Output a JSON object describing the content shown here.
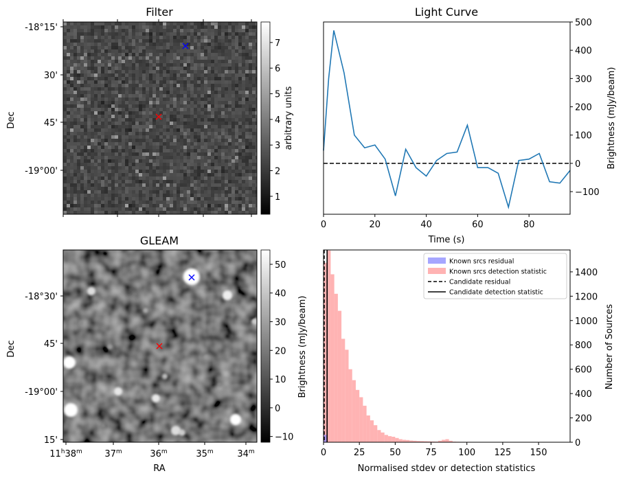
{
  "panels": {
    "filter": {
      "title": "Filter",
      "ylabel": "Dec",
      "yticks": [
        "-18°15'",
        "30'",
        "45'",
        "-19°00'"
      ],
      "colorbar": {
        "label": "arbitrary units",
        "ticks": [
          "1",
          "2",
          "3",
          "4",
          "5",
          "6",
          "7"
        ],
        "range": [
          0.3,
          7.8
        ]
      },
      "markers": [
        {
          "color": "#0000ff",
          "symbol": "x"
        },
        {
          "color": "#ff0000",
          "symbol": "x"
        }
      ]
    },
    "gleam": {
      "title": "GLEAM",
      "ylabel": "Dec",
      "xlabel": "RA",
      "yticks": [
        "-18°30'",
        "45'",
        "-19°00'",
        "15'"
      ],
      "xticks": [
        {
          "main": "11",
          "sup1": "h",
          "mid": "38",
          "sup2": "m"
        },
        {
          "main": "",
          "sup1": "",
          "mid": "37",
          "sup2": "m"
        },
        {
          "main": "",
          "sup1": "",
          "mid": "36",
          "sup2": "m"
        },
        {
          "main": "",
          "sup1": "",
          "mid": "35",
          "sup2": "m"
        },
        {
          "main": "",
          "sup1": "",
          "mid": "34",
          "sup2": "m"
        }
      ],
      "colorbar": {
        "label": "Brightness (mJy/beam)",
        "ticks": [
          "−10",
          "0",
          "10",
          "20",
          "30",
          "40",
          "50"
        ],
        "range": [
          -12,
          55
        ]
      }
    }
  },
  "chart_data": [
    {
      "type": "line",
      "title": "Light Curve",
      "xlabel": "Time (s)",
      "ylabel": "Brightness (mJy/beam)",
      "xlim": [
        0,
        96
      ],
      "ylim": [
        -180,
        500
      ],
      "xticks": [
        0,
        20,
        40,
        60,
        80
      ],
      "yticks": [
        -100,
        0,
        100,
        200,
        300,
        400,
        500
      ],
      "reference_line": {
        "y": 0,
        "style": "dashed",
        "color": "#000000"
      },
      "series": [
        {
          "color": "#1f77b4",
          "x": [
            0,
            2,
            4,
            8,
            12,
            16,
            20,
            24,
            28,
            32,
            36,
            40,
            44,
            48,
            52,
            56,
            60,
            64,
            68,
            72,
            76,
            80,
            84,
            88,
            92,
            96
          ],
          "y": [
            45,
            300,
            470,
            320,
            100,
            55,
            65,
            15,
            -115,
            50,
            -15,
            -45,
            10,
            35,
            40,
            135,
            -15,
            -15,
            -35,
            -155,
            10,
            15,
            35,
            -65,
            -70,
            -25
          ]
        }
      ]
    },
    {
      "type": "bar",
      "xlabel": "Normalised stdev or detection statistics",
      "ylabel_left": "Brightness (mJy/beam)",
      "ylabel_right": "Number of Sources",
      "xlim": [
        0,
        172
      ],
      "ylim": [
        0,
        1580
      ],
      "xticks": [
        0,
        25,
        50,
        75,
        100,
        125,
        150
      ],
      "yticks": [
        0,
        200,
        400,
        600,
        800,
        1000,
        1200,
        1400
      ],
      "legend_position": "top-right",
      "legend": [
        {
          "label": "Known srcs residual",
          "kind": "patch",
          "color": "#8888ff"
        },
        {
          "label": "Known srcs detection statistic",
          "kind": "patch",
          "color": "#ff9999"
        },
        {
          "label": "Candidate residual",
          "kind": "dashed",
          "color": "#000000"
        },
        {
          "label": "Candidate detection statistic",
          "kind": "solid",
          "color": "#000000"
        }
      ],
      "bin_width": 2.5,
      "series": [
        {
          "name": "Known srcs detection statistic",
          "color": "#ff9999",
          "bin_starts": [
            0,
            2.5,
            5,
            7.5,
            10,
            12.5,
            15,
            17.5,
            20,
            22.5,
            25,
            27.5,
            30,
            32.5,
            35,
            37.5,
            40,
            42.5,
            45,
            47.5,
            50,
            52.5,
            55,
            57.5,
            60,
            62.5,
            65,
            67.5,
            70,
            72.5,
            75,
            77.5,
            80,
            82.5,
            85,
            87.5,
            90,
            92.5,
            95,
            97.5,
            100,
            102.5,
            105,
            107.5,
            110,
            112.5,
            115,
            117.5,
            120,
            122.5,
            125,
            127.5,
            130,
            132.5,
            135,
            137.5,
            140,
            142.5,
            145,
            147.5,
            150,
            152.5,
            155,
            157.5,
            160,
            162.5
          ],
          "values": [
            1475,
            1575,
            1380,
            1220,
            1080,
            850,
            760,
            600,
            510,
            430,
            370,
            300,
            220,
            180,
            140,
            100,
            80,
            60,
            50,
            45,
            35,
            25,
            20,
            18,
            14,
            12,
            10,
            9,
            8,
            7,
            6,
            5,
            12,
            20,
            25,
            12,
            5,
            4,
            3,
            3,
            3,
            2,
            2,
            2,
            2,
            1,
            2,
            1,
            1,
            2,
            1,
            1,
            1,
            1,
            1,
            1,
            1,
            1,
            1,
            1,
            1,
            1,
            1,
            1,
            1,
            1
          ]
        },
        {
          "name": "Known srcs residual",
          "color": "#8888ff",
          "bin_starts": [
            0
          ],
          "values": [
            60
          ]
        }
      ],
      "candidate_detection_statistic": 2.5,
      "candidate_residual": 0.5
    }
  ]
}
